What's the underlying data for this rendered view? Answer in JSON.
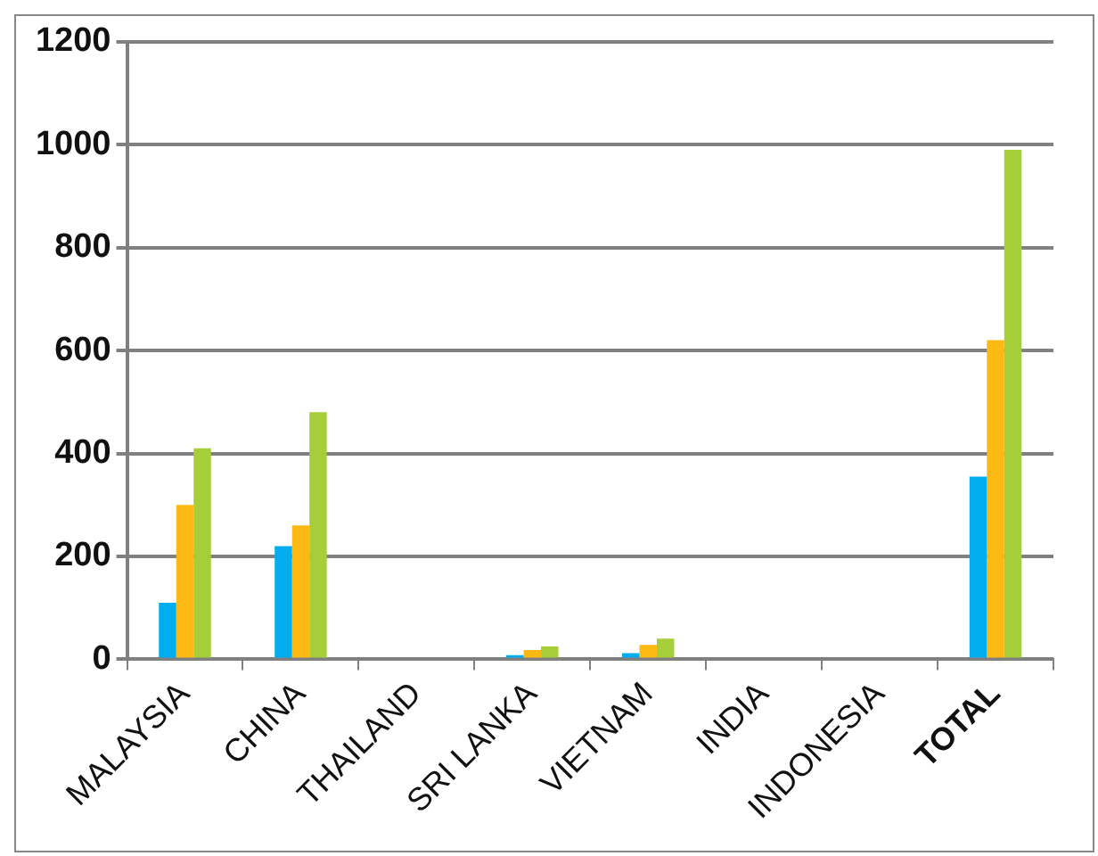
{
  "chart_data": {
    "type": "bar",
    "categories": [
      "MALAYSIA",
      "CHINA",
      "THAILAND",
      "SRI LANKA",
      "VIETNAM",
      "INDIA",
      "INDONESIA",
      "TOTAL"
    ],
    "series": [
      {
        "color": "#00aeef",
        "values": [
          110,
          220,
          0,
          8,
          12,
          0,
          0,
          355
        ]
      },
      {
        "color": "#fdb913",
        "values": [
          300,
          260,
          0,
          18,
          28,
          0,
          0,
          620
        ]
      },
      {
        "color": "#a6ce39",
        "values": [
          410,
          480,
          0,
          25,
          40,
          0,
          0,
          990
        ]
      }
    ],
    "ylim": [
      0,
      1200
    ],
    "yticks": [
      0,
      200,
      400,
      600,
      800,
      1000,
      1200
    ],
    "grid": "y",
    "legend": false
  }
}
